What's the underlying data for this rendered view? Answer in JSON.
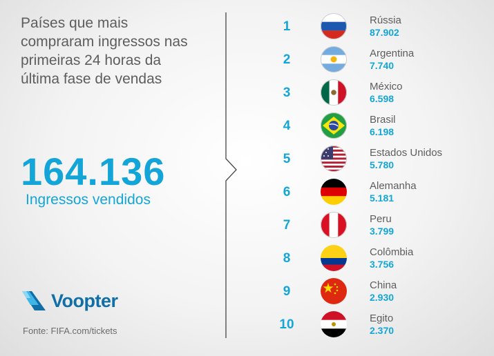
{
  "headline": "Países que mais compraram ingressos nas primeiras 24 horas da última fase de vendas",
  "total": "164.136",
  "total_label": "Ingressos vendidos",
  "brand": "Voopter",
  "source": "Fonte: FIFA.com/tickets",
  "colors": {
    "accent": "#14a5d8",
    "brand": "#0f6fa6",
    "text": "#5d5d5d"
  },
  "chart_data": {
    "type": "table",
    "columns": [
      "rank",
      "country",
      "tickets"
    ],
    "rows": [
      {
        "rank": "1",
        "country": "Rússia",
        "value": "87.902",
        "flag": "russia-flag-icon"
      },
      {
        "rank": "2",
        "country": "Argentina",
        "value": "7.740",
        "flag": "argentina-flag-icon"
      },
      {
        "rank": "3",
        "country": "México",
        "value": "6.598",
        "flag": "mexico-flag-icon"
      },
      {
        "rank": "4",
        "country": "Brasil",
        "value": "6.198",
        "flag": "brazil-flag-icon"
      },
      {
        "rank": "5",
        "country": "Estados Unidos",
        "value": "5.780",
        "flag": "usa-flag-icon"
      },
      {
        "rank": "6",
        "country": "Alemanha",
        "value": "5.181",
        "flag": "germany-flag-icon"
      },
      {
        "rank": "7",
        "country": "Peru",
        "value": "3.799",
        "flag": "peru-flag-icon"
      },
      {
        "rank": "8",
        "country": "Colômbia",
        "value": "3.756",
        "flag": "colombia-flag-icon"
      },
      {
        "rank": "9",
        "country": "China",
        "value": "2.930",
        "flag": "china-flag-icon"
      },
      {
        "rank": "10",
        "country": "Egito",
        "value": "2.370",
        "flag": "egypt-flag-icon"
      }
    ]
  }
}
